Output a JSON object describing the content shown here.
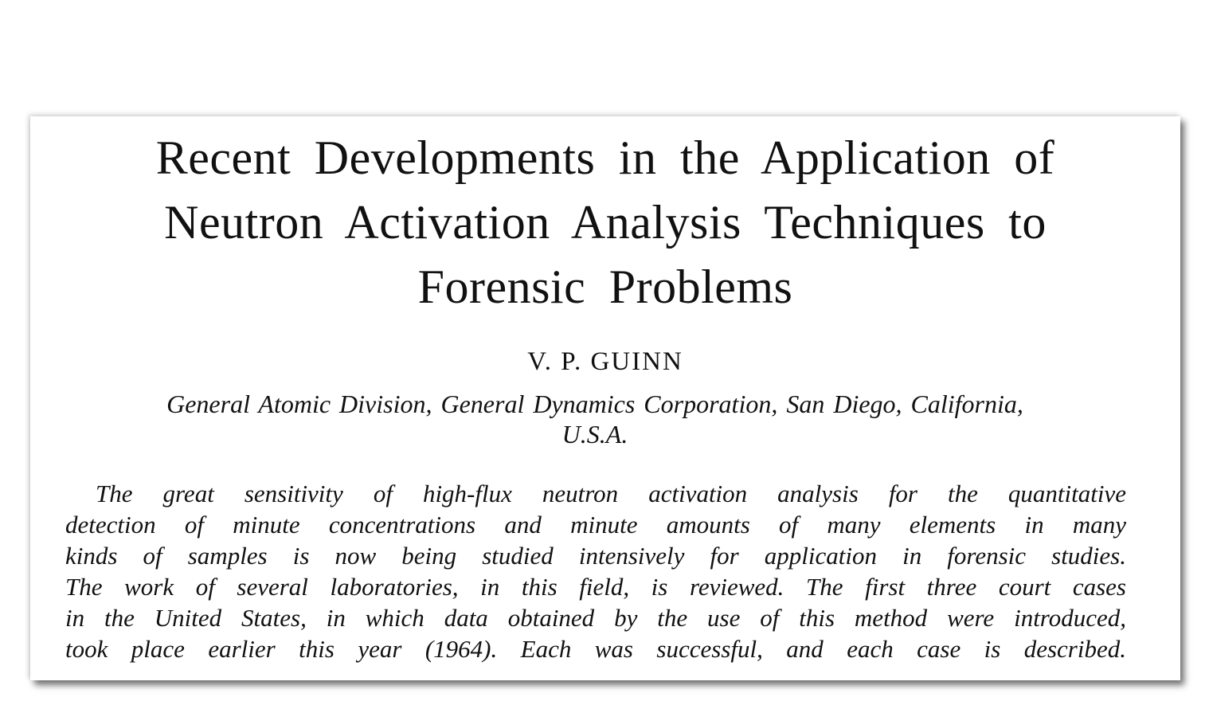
{
  "title_lines": [
    "Recent Developments in the Application of",
    "Neutron Activation Analysis Techniques to",
    "Forensic Problems"
  ],
  "author": "V. P. GUINN",
  "affiliation_lines": [
    "General Atomic Division, General Dynamics Corporation, San Diego, California,",
    "U.S.A."
  ],
  "abstract_lines": [
    "The great sensitivity of high-flux neutron activation analysis for the quantitative",
    "detection of minute concentrations and minute amounts of many elements in many",
    "kinds of samples is now being studied intensively for application in forensic studies.",
    "The work of several laboratories, in this field, is reviewed.   The first three court cases",
    "in the United States, in which data obtained by the use of this method were introduced,",
    "took place earlier this year (1964).   Each was successful, and each case is described."
  ]
}
